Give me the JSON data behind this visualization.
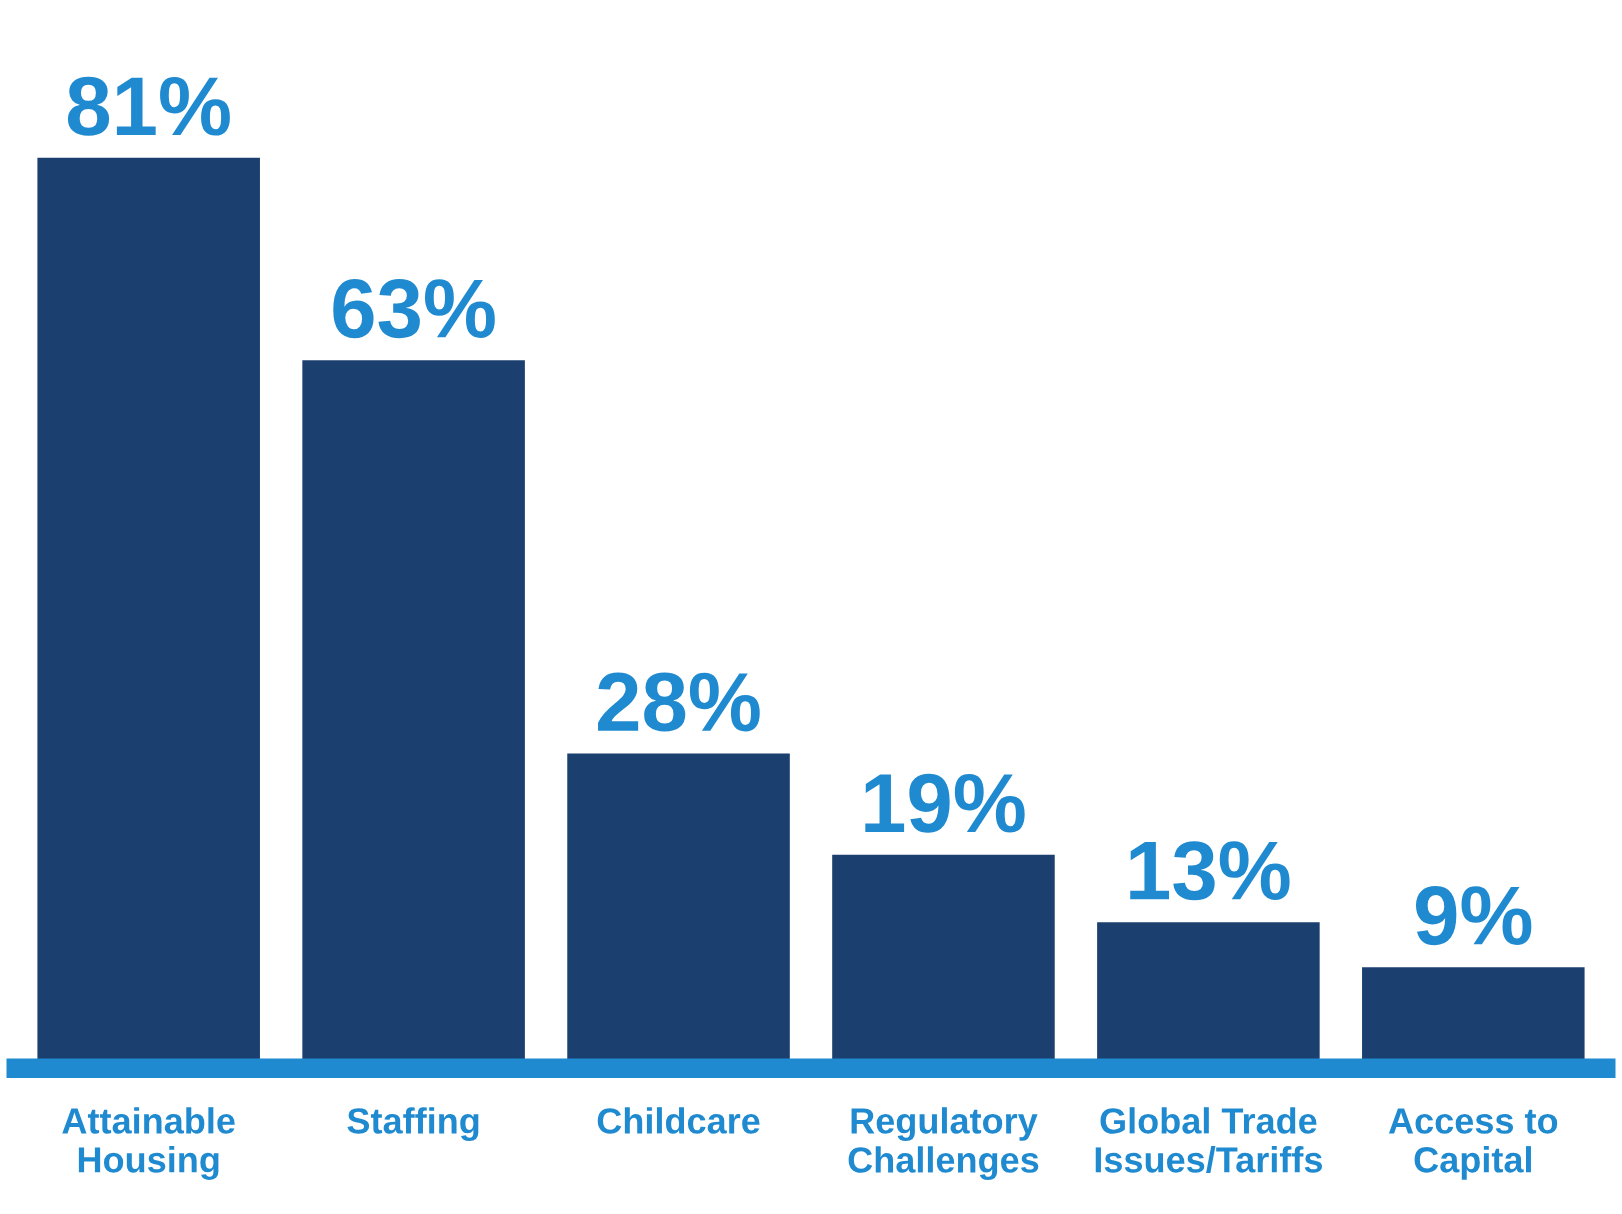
{
  "chart_data": {
    "type": "bar",
    "categories": [
      "Attainable\nHousing",
      "Staffing",
      "Childcare",
      "Regulatory\nChallenges",
      "Global Trade\nIssues/Tariffs",
      "Access to\nCapital"
    ],
    "values": [
      81,
      63,
      28,
      19,
      13,
      9
    ],
    "value_labels": [
      "81%",
      "63%",
      "28%",
      "19%",
      "13%",
      "9%"
    ],
    "color": "#1b3f6e",
    "grid": false,
    "legend": false
  }
}
